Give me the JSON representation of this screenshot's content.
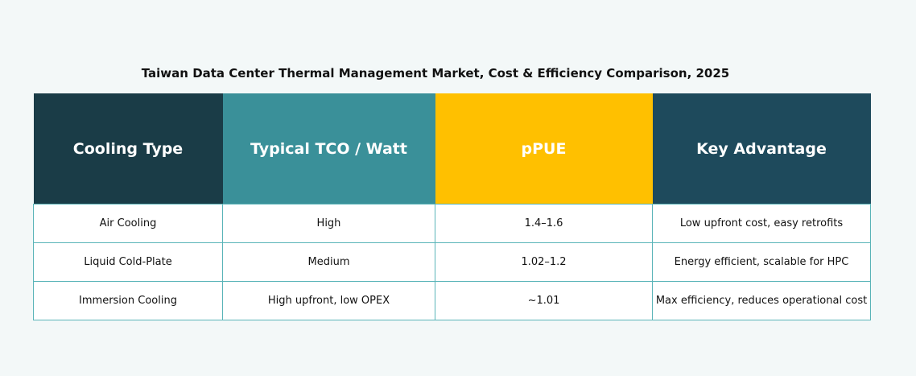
{
  "title": "Taiwan Data Center Thermal Management Market, Cost & Efficiency Comparison, 2025",
  "table": {
    "header": [
      "Cooling Type",
      "Typical TCO / Watt",
      "pPUE",
      "Key Advantage"
    ],
    "rows": [
      [
        "Air Cooling",
        "High",
        "1.4–1.6",
        "Low upfront cost, easy retrofits"
      ],
      [
        "Liquid Cold-Plate",
        "Medium",
        "1.02–1.2",
        "Energy efficient, scalable for HPC"
      ],
      [
        "Immersion Cooling",
        "High upfront, low OPEX",
        "~1.01",
        "Max efficiency, reduces operational cost"
      ]
    ]
  }
}
